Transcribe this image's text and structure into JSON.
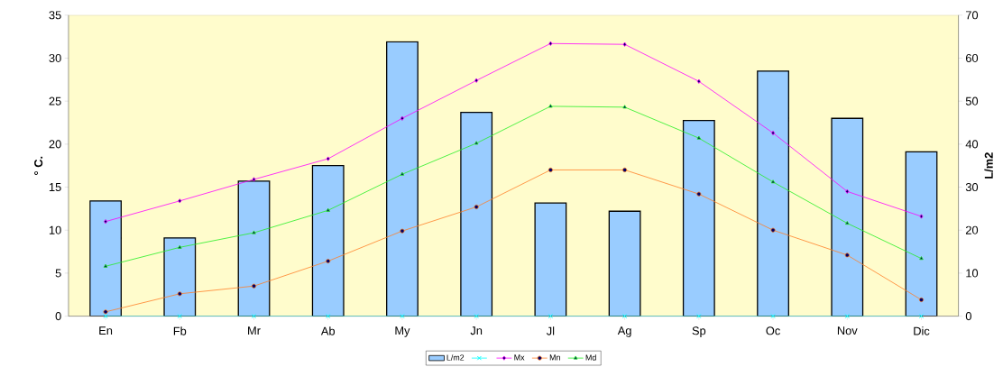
{
  "chart_data": {
    "type": "line",
    "categories": [
      "En",
      "Fb",
      "Mr",
      "Ab",
      "My",
      "Jn",
      "Jl",
      "Ag",
      "Sp",
      "Oc",
      "Nov",
      "Dic"
    ],
    "series": [
      {
        "name": "L/m2",
        "type": "bar",
        "axis": "y2",
        "color": "#99ccff",
        "values": [
          26.8,
          18.2,
          31.4,
          35,
          63.8,
          47.4,
          26.3,
          24.4,
          45.5,
          57,
          46,
          38.2
        ]
      },
      {
        "color": "#00ffff",
        "marker": "cross",
        "values": [
          0,
          0,
          0,
          0,
          0,
          0,
          0,
          0,
          0,
          0,
          0,
          0
        ]
      },
      {
        "name": "Mx",
        "color": "#ff00ff",
        "marker": "diamond",
        "values": [
          11,
          13.4,
          15.9,
          18.3,
          23,
          27.4,
          31.7,
          31.6,
          27.3,
          21.3,
          14.5,
          11.6
        ]
      },
      {
        "name": "Mn",
        "color": "#ff7f27",
        "marker": "circle",
        "values": [
          0.5,
          2.6,
          3.5,
          6.4,
          9.9,
          12.7,
          17,
          17,
          14.2,
          10,
          7.1,
          1.9
        ]
      },
      {
        "name": "Md",
        "color": "#22ee22",
        "marker": "triangle",
        "values": [
          5.8,
          8,
          9.7,
          12.3,
          16.5,
          20.1,
          24.4,
          24.3,
          20.7,
          15.6,
          10.8,
          6.7
        ]
      }
    ],
    "ylabel": "° C.",
    "y2label": "L/m2",
    "ylim": [
      0,
      35
    ],
    "yticks": [
      0,
      5,
      10,
      15,
      20,
      25,
      30,
      35
    ],
    "y2lim": [
      0,
      70
    ],
    "y2ticks": [
      0,
      10,
      20,
      30,
      40,
      50,
      60,
      70
    ],
    "legend": "bottom",
    "grid": false
  }
}
